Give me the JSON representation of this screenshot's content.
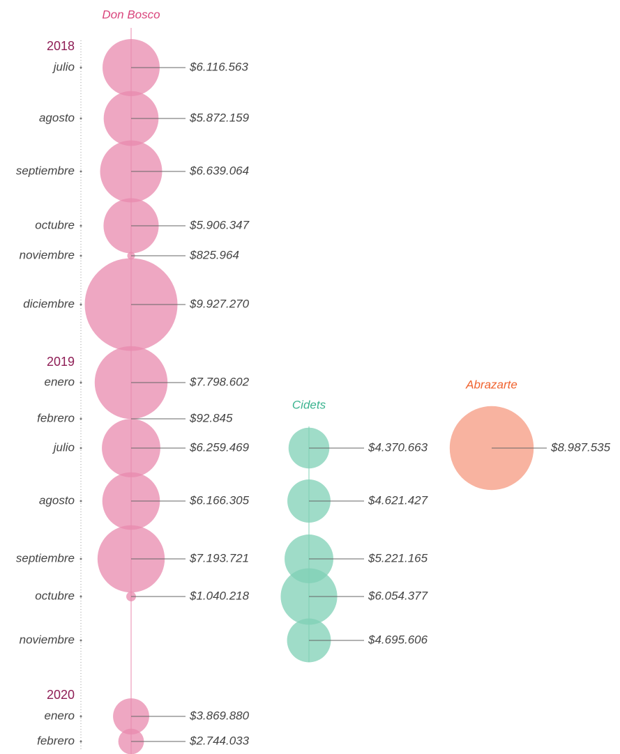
{
  "chart_data": {
    "type": "bubble",
    "year_labels": [
      "2018",
      "2019",
      "2020"
    ],
    "categories": [
      "julio",
      "agosto",
      "septiembre",
      "octubre",
      "noviembre",
      "diciembre",
      "enero",
      "febrero",
      "julio",
      "agosto",
      "septiembre",
      "octubre",
      "noviembre",
      "enero",
      "febrero"
    ],
    "series": [
      {
        "name": "Don Bosco",
        "color": "#e88aad",
        "title_color": "#d9457c",
        "values": [
          6116563,
          5872159,
          6639064,
          5906347,
          825964,
          9927270,
          7798602,
          92845,
          6259469,
          6166305,
          7193721,
          1040218,
          null,
          3869880,
          2744033
        ],
        "value_labels": [
          "$6.116.563",
          "$5.872.159",
          "$6.639.064",
          "$5.906.347",
          "$825.964",
          "$9.927.270",
          "$7.798.602",
          "$92.845",
          "$6.259.469",
          "$6.166.305",
          "$7.193.721",
          "$1.040.218",
          null,
          "$3.869.880",
          "$2.744.033"
        ]
      },
      {
        "name": "Cidets",
        "color": "#7fd0b5",
        "title_color": "#3bb38f",
        "values": [
          null,
          null,
          null,
          null,
          null,
          null,
          null,
          null,
          4370663,
          4621427,
          5221165,
          6054377,
          4695606,
          null,
          null
        ],
        "value_labels": [
          null,
          null,
          null,
          null,
          null,
          null,
          null,
          null,
          "$4.370.663",
          "$4.621.427",
          "$5.221.165",
          "$6.054.377",
          "$4.695.606",
          null,
          null
        ]
      },
      {
        "name": "Abrazarte",
        "color": "#f59a80",
        "title_color": "#f0632f",
        "values": [
          null,
          null,
          null,
          null,
          null,
          null,
          null,
          null,
          8987535,
          null,
          null,
          null,
          null,
          null,
          null
        ],
        "value_labels": [
          null,
          null,
          null,
          null,
          null,
          null,
          null,
          null,
          "$8.987.535",
          null,
          null,
          null,
          null,
          null,
          null
        ]
      }
    ]
  }
}
